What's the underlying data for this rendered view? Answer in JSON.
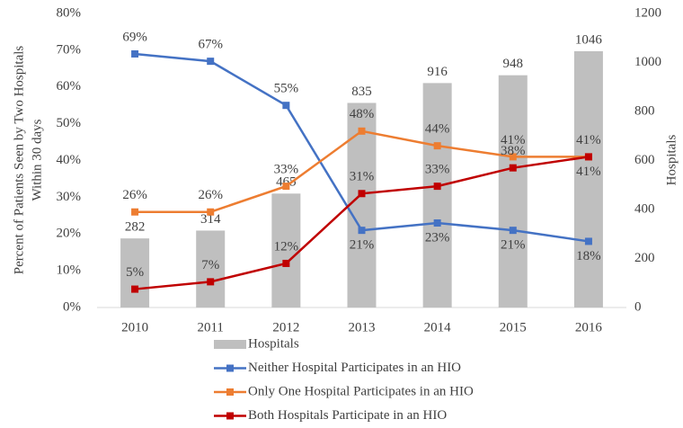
{
  "chart_data": {
    "type": "bar_line",
    "ylabel": [
      "Percent of Patients Seen by Two Hospitals",
      "Within 30 days"
    ],
    "y2label": "Hospitals",
    "categories": [
      "2010",
      "2011",
      "2012",
      "2013",
      "2014",
      "2015",
      "2016"
    ],
    "series": [
      {
        "name": "Hospitals",
        "type": "bar",
        "axis": "y2",
        "color": "#bfbfbf",
        "values": [
          282,
          314,
          465,
          835,
          916,
          948,
          1046
        ]
      },
      {
        "name": "Neither Hospital Participates in an HIO",
        "type": "line",
        "color": "#4472c4",
        "values": [
          69,
          67,
          55,
          21,
          23,
          21,
          18
        ],
        "value_labels": [
          "69%",
          "67%",
          "55%",
          "21%",
          "23%",
          "21%",
          "18%"
        ]
      },
      {
        "name": "Only One Hospital Participates in an HIO",
        "type": "line",
        "color": "#ed7d31",
        "values": [
          26,
          26,
          33,
          48,
          44,
          41,
          41
        ],
        "value_labels": [
          "26%",
          "26%",
          "33%",
          "48%",
          "44%",
          "41%",
          "41%"
        ]
      },
      {
        "name": "Both Hospitals Participate in an HIO",
        "type": "line",
        "color": "#c00000",
        "values": [
          5,
          7,
          12,
          31,
          33,
          38,
          41
        ],
        "value_labels": [
          "5%",
          "7%",
          "12%",
          "31%",
          "33%",
          "38%",
          "41%"
        ]
      }
    ],
    "ylim": [
      0,
      80
    ],
    "yticks": [
      {
        "value": 0,
        "label": "0%"
      },
      {
        "value": 10,
        "label": "10%"
      },
      {
        "value": 20,
        "label": "20%"
      },
      {
        "value": 30,
        "label": "30%"
      },
      {
        "value": 40,
        "label": "40%"
      },
      {
        "value": 50,
        "label": "50%"
      },
      {
        "value": 60,
        "label": "60%"
      },
      {
        "value": 70,
        "label": "70%"
      },
      {
        "value": 80,
        "label": "80%"
      }
    ],
    "y2lim": [
      0,
      1200
    ],
    "y2ticks": [
      0,
      200,
      400,
      600,
      800,
      1000,
      1200
    ],
    "legend": "bottom"
  }
}
